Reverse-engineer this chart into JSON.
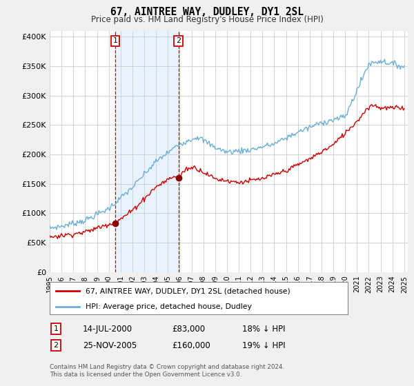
{
  "title": "67, AINTREE WAY, DUDLEY, DY1 2SL",
  "subtitle": "Price paid vs. HM Land Registry's House Price Index (HPI)",
  "ylabel_ticks": [
    "£0",
    "£50K",
    "£100K",
    "£150K",
    "£200K",
    "£250K",
    "£300K",
    "£350K",
    "£400K"
  ],
  "ytick_values": [
    0,
    50000,
    100000,
    150000,
    200000,
    250000,
    300000,
    350000,
    400000
  ],
  "ylim": [
    0,
    410000
  ],
  "legend_line1": "67, AINTREE WAY, DUDLEY, DY1 2SL (detached house)",
  "legend_line2": "HPI: Average price, detached house, Dudley",
  "marker1_date": "14-JUL-2000",
  "marker1_price": 83000,
  "marker1_label": "18% ↓ HPI",
  "marker1_x": 2000.54,
  "marker2_date": "25-NOV-2005",
  "marker2_price": 160000,
  "marker2_label": "19% ↓ HPI",
  "marker2_x": 2005.9,
  "footnote": "Contains HM Land Registry data © Crown copyright and database right 2024.\nThis data is licensed under the Open Government Licence v3.0.",
  "hpi_color": "#6baed6",
  "price_color": "#cc0000",
  "marker_color": "#8b0000",
  "vline_color": "#cc0000",
  "shade_color": "#ddeeff",
  "background_color": "#f0f0f0",
  "plot_bg_color": "#ffffff",
  "grid_color": "#cccccc"
}
